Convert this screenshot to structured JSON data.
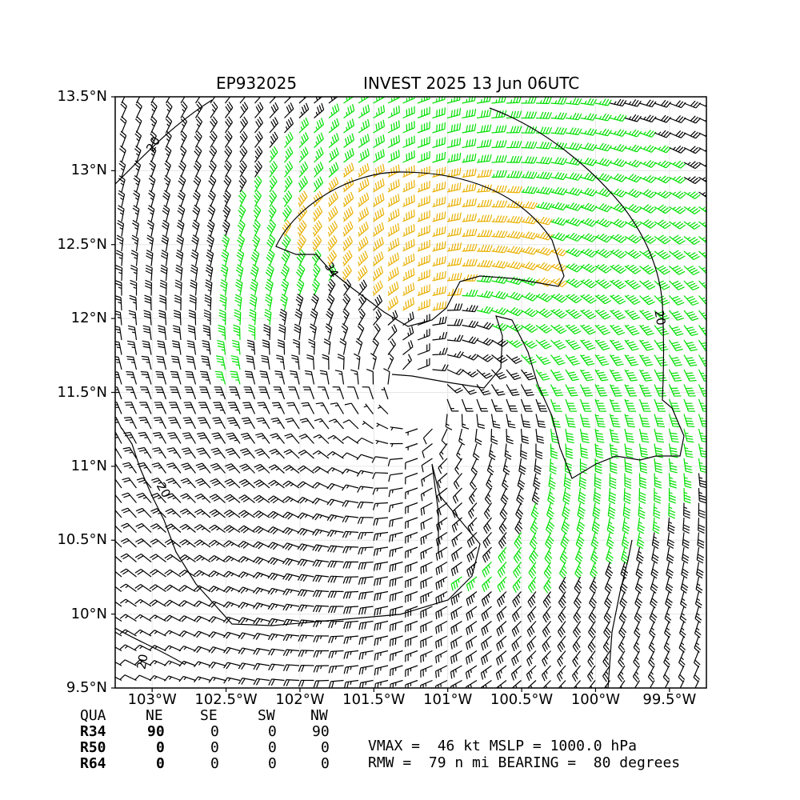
{
  "header": {
    "storm_id": "EP932025",
    "storm_title": "INVEST 2025 13 Jun 06UTC"
  },
  "axes": {
    "lat_labels": [
      "13.5°N",
      "13°N",
      "12.5°N",
      "12°N",
      "11.5°N",
      "11°N",
      "10.5°N",
      "10°N",
      "9.5°N"
    ],
    "lon_labels": [
      "103°W",
      "102.5°W",
      "102°W",
      "101.5°W",
      "101°W",
      "100.5°W",
      "100°W",
      "99.5°W"
    ],
    "lat_range": [
      9.5,
      13.5
    ],
    "lon_range": [
      -103.25,
      -99.25
    ],
    "grid": true
  },
  "contour_labels": [
    "20",
    "34",
    "20",
    "20",
    "20"
  ],
  "colors": {
    "below_34kt": "#000000",
    "gale_34_50kt": "#00e000",
    "storm_50_64kt": "#e8b000",
    "contour": "#000000"
  },
  "wind_field": {
    "center_lon": -101.2,
    "center_lat": 11.45,
    "vmax_kt": 46,
    "rmw_nmi": 79,
    "bearing_deg": 80
  },
  "quadrant_table": {
    "header": [
      "QUA",
      "NE",
      "SE",
      "SW",
      "NW"
    ],
    "rows": [
      {
        "label": "R34",
        "values": [
          "90",
          "0",
          "0",
          "90"
        ]
      },
      {
        "label": "R50",
        "values": [
          "0",
          "0",
          "0",
          "0"
        ]
      },
      {
        "label": "R64",
        "values": [
          "0",
          "0",
          "0",
          "0"
        ]
      }
    ]
  },
  "summary": {
    "line1": "VMAX =  46 kt MSLP = 1000.0 hPa",
    "line2": "RMW =  79 n mi BEARING =  80 degrees"
  }
}
